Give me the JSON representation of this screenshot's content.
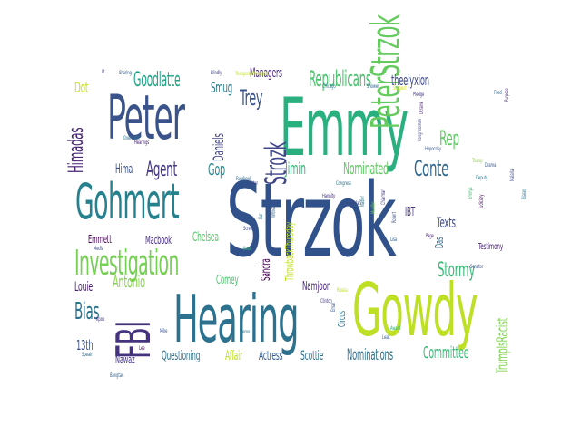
{
  "words": [
    {
      "text": "Strzok",
      "color": "#30518a"
    },
    {
      "text": "Emmy",
      "color": "#2ab07f"
    },
    {
      "text": "Hearing",
      "color": "#2c728e"
    },
    {
      "text": "Peter",
      "color": "#3a538b"
    },
    {
      "text": "Gowdy",
      "color": "#bddf26"
    },
    {
      "text": "Gohmert",
      "color": "#26818e"
    },
    {
      "text": "PeterStrzok",
      "color": "#65cb5e"
    },
    {
      "text": "Investigation",
      "color": "#75d054"
    },
    {
      "text": "FBI",
      "color": "#46337f"
    },
    {
      "text": "Strozk",
      "color": "#404688"
    },
    {
      "text": "Republicans",
      "color": "#4ac16d"
    },
    {
      "text": "Conte",
      "color": "#31688e"
    },
    {
      "text": "Nominated",
      "color": "#5ec962"
    },
    {
      "text": "Trey",
      "color": "#3b528b"
    },
    {
      "text": "Stormy",
      "color": "#38b977"
    },
    {
      "text": "Himadas",
      "color": "#482475"
    },
    {
      "text": "Agent",
      "color": "#453781"
    },
    {
      "text": "Jimin",
      "color": "#35b779"
    },
    {
      "text": "Goodlatte",
      "color": "#20a486"
    },
    {
      "text": "Committee",
      "color": "#3aba76"
    },
    {
      "text": "Nominations",
      "color": "#2d708e"
    },
    {
      "text": "TrumpIsRacist",
      "color": "#7fd34e"
    },
    {
      "text": "Antonio",
      "color": "#84d44b"
    },
    {
      "text": "Bias",
      "color": "#2c728e"
    },
    {
      "text": "Rep",
      "color": "#5ec962"
    },
    {
      "text": "Texts",
      "color": "#3e4989"
    },
    {
      "text": "Daniels",
      "color": "#414487"
    },
    {
      "text": "Chelsea",
      "color": "#52c569"
    },
    {
      "text": "theelyxion",
      "color": "#3e4989"
    },
    {
      "text": "Managers",
      "color": "#482878"
    },
    {
      "text": "Smug",
      "color": "#2a788e"
    },
    {
      "text": "Gop",
      "color": "#24868e"
    },
    {
      "text": "Hima",
      "color": "#3b528b"
    },
    {
      "text": "Questioning",
      "color": "#2d708e"
    },
    {
      "text": "Actress",
      "color": "#365c8d"
    },
    {
      "text": "Scottie",
      "color": "#2e6e8e"
    },
    {
      "text": "Affair",
      "color": "#bddf26"
    },
    {
      "text": "Emmett",
      "color": "#440154"
    },
    {
      "text": "Macbook",
      "color": "#46307e"
    },
    {
      "text": "Louie",
      "color": "#481f70"
    },
    {
      "text": "Comey",
      "color": "#4ac16d"
    },
    {
      "text": "Namjoon",
      "color": "#482878"
    },
    {
      "text": "Sandra",
      "color": "#440154"
    },
    {
      "text": "ThrowbackThursday",
      "color": "#c2df23"
    },
    {
      "text": "13th",
      "color": "#3b528b"
    },
    {
      "text": "Nawaz",
      "color": "#453781"
    },
    {
      "text": "Dot",
      "color": "#c8e020"
    },
    {
      "text": "Das",
      "color": "#31688e"
    },
    {
      "text": "IBT",
      "color": "#46327e"
    },
    {
      "text": "Testimony",
      "color": "#482475"
    },
    {
      "text": "Circus",
      "color": "#2c728e"
    },
    {
      "text": "Lt",
      "color": "#424086"
    },
    {
      "text": "Sharing",
      "color": "#355f8d"
    },
    {
      "text": "Blindly",
      "color": "#414487"
    },
    {
      "text": "Trumpcrapthoughts",
      "color": "#c2df23"
    },
    {
      "text": "Chicago",
      "color": "#2a788e"
    },
    {
      "text": "Shower",
      "color": "#31688e"
    },
    {
      "text": "Suspect",
      "color": "#d8e219"
    },
    {
      "text": "Pledge",
      "color": "#443983"
    },
    {
      "text": "Ukraine",
      "color": "#482173"
    },
    {
      "text": "Congressman",
      "color": "#404688"
    },
    {
      "text": "Hypocrisy",
      "color": "#3a548c"
    },
    {
      "text": "Fired",
      "color": "#31688e"
    },
    {
      "text": "Purpose",
      "color": "#482878"
    },
    {
      "text": "Malaria",
      "color": "#3e4a89"
    },
    {
      "text": "Biased",
      "color": "#2c728e"
    },
    {
      "text": "Drama",
      "color": "#3a548c"
    },
    {
      "text": "Trump",
      "color": "#8ed645"
    },
    {
      "text": "Deputy",
      "color": "#2a788e"
    },
    {
      "text": "Chairman",
      "color": "#46337f"
    },
    {
      "text": "Robert",
      "color": "#3b528b"
    },
    {
      "text": "Mueller",
      "color": "#6ece58"
    },
    {
      "text": "Nadler",
      "color": "#2d708e"
    },
    {
      "text": "Jordan",
      "color": "#404688"
    },
    {
      "text": "Lisa",
      "color": "#355f8d"
    },
    {
      "text": "Page",
      "color": "#482475"
    },
    {
      "text": "Senator",
      "color": "#3e4a89"
    },
    {
      "text": "Judiciary",
      "color": "#440154"
    },
    {
      "text": "Emmys",
      "color": "#3dbc74"
    },
    {
      "text": "Award",
      "color": "#2ab07f"
    },
    {
      "text": "Leak",
      "color": "#33628d"
    },
    {
      "text": "Clinton",
      "color": "#443a83"
    },
    {
      "text": "Email",
      "color": "#3a548c"
    },
    {
      "text": "Russia",
      "color": "#c0df25"
    },
    {
      "text": "Oversight",
      "color": "#2c728e"
    },
    {
      "text": "Hearings",
      "color": "#482173"
    },
    {
      "text": "Facebook",
      "color": "#31688e"
    },
    {
      "text": "Twitter",
      "color": "#3e4989"
    },
    {
      "text": "Liar",
      "color": "#2a788e"
    },
    {
      "text": "Witness",
      "color": "#355f8d"
    },
    {
      "text": "Screen",
      "color": "#3e4a89"
    },
    {
      "text": "Sean",
      "color": "#38b977"
    },
    {
      "text": "Hannity",
      "color": "#46307e"
    },
    {
      "text": "Congress",
      "color": "#2c728e"
    },
    {
      "text": "Mike",
      "color": "#3b528b"
    },
    {
      "text": "Lee",
      "color": "#440154"
    },
    {
      "text": "Memo",
      "color": "#2a788e"
    },
    {
      "text": "Speak",
      "color": "#31688e"
    },
    {
      "text": "Media",
      "color": "#3e4989"
    },
    {
      "text": "Kpop",
      "color": "#46337f"
    },
    {
      "text": "Bangtan",
      "color": "#33628d"
    },
    {
      "text": "Bts",
      "color": "#2e6e8e"
    },
    {
      "text": "Taehyung",
      "color": "#404688"
    },
    {
      "text": "Tape",
      "color": "#482475"
    },
    {
      "text": "Disgrace",
      "color": "#52c569"
    },
    {
      "text": "Debate",
      "color": "#3a548c"
    },
    {
      "text": "Question",
      "color": "#2c728e"
    },
    {
      "text": "Lying",
      "color": "#46307e"
    },
    {
      "text": "Clown",
      "color": "#33628d"
    },
    {
      "text": "Rude",
      "color": "#481f70"
    },
    {
      "text": "Daily",
      "color": "#2d708e"
    },
    {
      "text": "Show",
      "color": "#404688"
    },
    {
      "text": "News",
      "color": "#440154"
    },
    {
      "text": "Fox",
      "color": "#3b528b"
    },
    {
      "text": "Mad",
      "color": "#2a788e"
    },
    {
      "text": "Vote",
      "color": "#31688e"
    },
    {
      "text": "Video",
      "color": "#3e4989"
    },
    {
      "text": "Watch",
      "color": "#46337f"
    },
    {
      "text": "Live",
      "color": "#33628d"
    },
    {
      "text": "Matt",
      "color": "#2e6e8e"
    },
    {
      "text": "Gaetz",
      "color": "#404688"
    },
    {
      "text": "Hillary",
      "color": "#482475"
    },
    {
      "text": "Obama",
      "color": "#3a548c"
    },
    {
      "text": "Bully",
      "color": "#2c728e"
    },
    {
      "text": "Tv",
      "color": "#46307e"
    }
  ]
}
